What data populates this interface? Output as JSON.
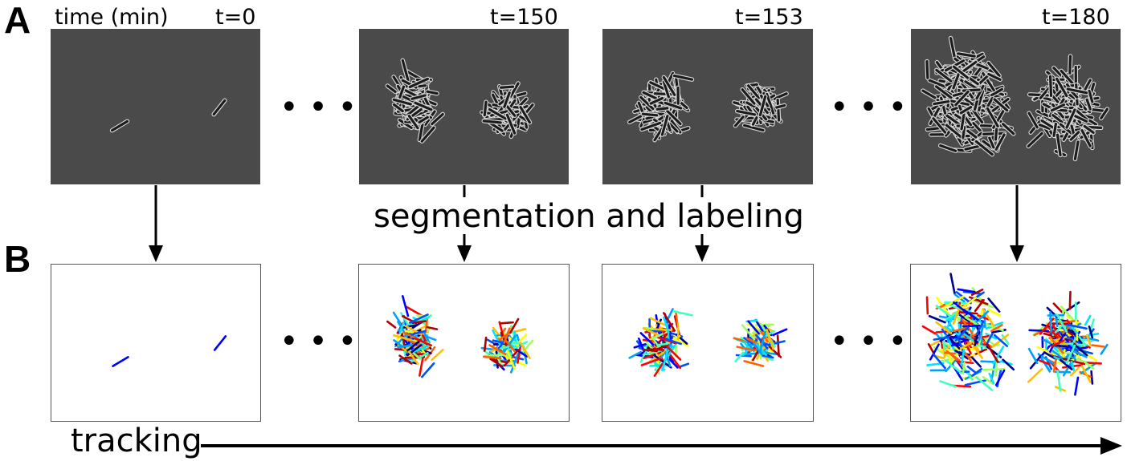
{
  "panels": {
    "a_label": "A",
    "b_label": "B"
  },
  "time_axis_label": "time (min)",
  "timepoints": [
    "t=0",
    "t=150",
    "t=153",
    "t=180"
  ],
  "step_labels": {
    "segmentation": "segmentation and labeling",
    "tracking": "tracking"
  },
  "ellipsis": "• • •",
  "colors": {
    "micro_background": "#4a4a4a",
    "cell_outline": "#1c1c1c",
    "cell_halo": "#d8d8d8",
    "arrow": "#000000",
    "label_palette": [
      "#00008f",
      "#0000ff",
      "#0050ff",
      "#00a0ff",
      "#00e5ff",
      "#40ffbf",
      "#9fff60",
      "#ffff00",
      "#ffbf00",
      "#ff6000",
      "#ff0000",
      "#b00000"
    ]
  }
}
